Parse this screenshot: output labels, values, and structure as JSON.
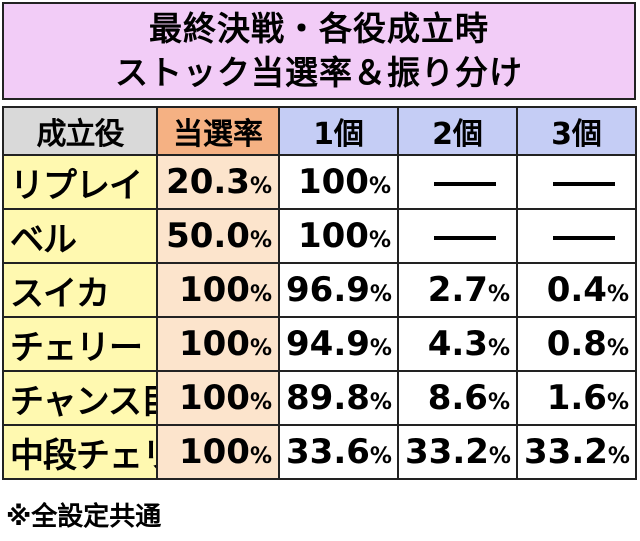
{
  "title": {
    "line1": "最終決戦・各役成立時",
    "line2": "ストック当選率＆振り分け"
  },
  "table": {
    "headers": {
      "role": "成立役",
      "rate": "当選率",
      "one": "1個",
      "two": "2個",
      "three": "3個"
    },
    "unit": "%",
    "rows": [
      {
        "role": "リプレイ",
        "rate": "20.3",
        "one": "100",
        "two": "—",
        "three": "—"
      },
      {
        "role": "ベル",
        "rate": "50.0",
        "one": "100",
        "two": "—",
        "three": "—"
      },
      {
        "role": "スイカ",
        "rate": "100",
        "one": "96.9",
        "two": "2.7",
        "three": "0.4"
      },
      {
        "role": "チェリー",
        "rate": "100",
        "one": "94.9",
        "two": "4.3",
        "three": "0.8"
      },
      {
        "role": "チャンス目",
        "rate": "100",
        "one": "89.8",
        "two": "8.6",
        "three": "1.6"
      },
      {
        "role": "中段チェリー",
        "rate": "100",
        "one": "33.6",
        "two": "33.2",
        "three": "33.2"
      }
    ]
  },
  "note": "※全設定共通",
  "colors": {
    "title_bg": "#f2ccf7",
    "role_header_bg": "#d9d9d9",
    "rate_header_bg": "#f5b183",
    "count_header_bg": "#c5cdf5",
    "role_cell_bg": "#fff9b0",
    "rate_cell_bg": "#fce4cc"
  }
}
